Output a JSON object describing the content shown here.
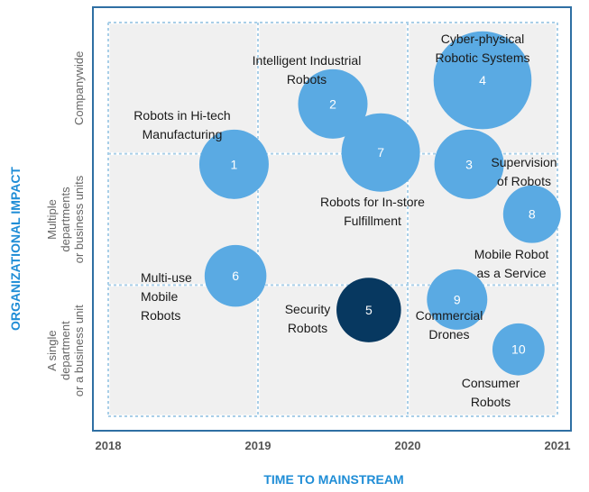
{
  "chart_data": {
    "type": "scatter",
    "xlabel": "TIME TO MAINSTREAM",
    "ylabel": "ORGANIZATIONAL IMPACT",
    "xlim": [
      2018,
      2021
    ],
    "x_ticks": [
      "2018",
      "2019",
      "2020",
      "2021"
    ],
    "y_categories": [
      [
        "A single",
        "department",
        "or a business unit"
      ],
      [
        "Multiple",
        "departments",
        "or business units"
      ],
      [
        "Companywide"
      ]
    ],
    "ylim": [
      0,
      3
    ],
    "grid": true,
    "points": [
      {
        "id": "1",
        "x": 2018.84,
        "y": 1.92,
        "size": 1.0,
        "color": "#5aaae3",
        "label": [
          "Robots in Hi-tech",
          "Manufacturing"
        ]
      },
      {
        "id": "2",
        "x": 2019.5,
        "y": 2.38,
        "size": 1.0,
        "color": "#5aaae3",
        "label": [
          "Intelligent Industrial",
          "Robots"
        ]
      },
      {
        "id": "3",
        "x": 2020.41,
        "y": 1.92,
        "size": 1.0,
        "color": "#5aaae3",
        "label": [
          "Supervision",
          "of Robots"
        ]
      },
      {
        "id": "4",
        "x": 2020.5,
        "y": 2.56,
        "size": 1.41,
        "color": "#5aaae3",
        "label": [
          "Cyber-physical",
          "Robotic Systems"
        ]
      },
      {
        "id": "5",
        "x": 2019.74,
        "y": 0.81,
        "size": 0.93,
        "color": "#073860",
        "label": [
          "Security",
          "Robots"
        ]
      },
      {
        "id": "6",
        "x": 2018.85,
        "y": 1.07,
        "size": 0.89,
        "color": "#5aaae3",
        "label": [
          "Multi-use",
          "Mobile",
          "Robots"
        ]
      },
      {
        "id": "7",
        "x": 2019.82,
        "y": 2.01,
        "size": 1.13,
        "color": "#5aaae3",
        "label": [
          "Robots for In-store",
          "Fulfillment"
        ]
      },
      {
        "id": "8",
        "x": 2020.83,
        "y": 1.54,
        "size": 0.83,
        "color": "#5aaae3",
        "label": [
          "Mobile Robot",
          "as a Service"
        ]
      },
      {
        "id": "9",
        "x": 2020.33,
        "y": 0.89,
        "size": 0.87,
        "color": "#5aaae3",
        "label": [
          "Commercial",
          "Drones"
        ]
      },
      {
        "id": "10",
        "x": 2020.74,
        "y": 0.51,
        "size": 0.75,
        "color": "#5aaae3",
        "label": [
          "Consumer",
          "Robots"
        ]
      }
    ]
  }
}
